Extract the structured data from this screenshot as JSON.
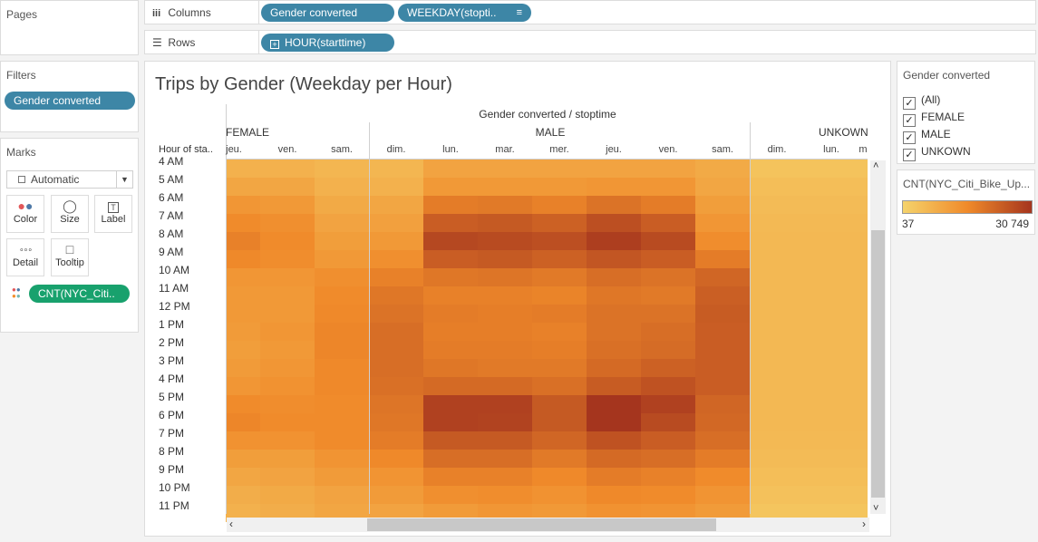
{
  "pages_label": "Pages",
  "columns_shelf": {
    "label": "Columns",
    "pills": [
      "Gender converted",
      "WEEKDAY(stopti.."
    ]
  },
  "rows_shelf": {
    "label": "Rows",
    "pills": [
      "HOUR(starttime)"
    ]
  },
  "filters": {
    "title": "Filters",
    "pills": [
      "Gender converted"
    ]
  },
  "marks": {
    "title": "Marks",
    "type": "Automatic",
    "buttons": [
      {
        "label": "Color",
        "icon": "color-dots-icon"
      },
      {
        "label": "Size",
        "icon": "size-icon"
      },
      {
        "label": "Label",
        "icon": "label-icon"
      },
      {
        "label": "Detail",
        "icon": "detail-icon"
      },
      {
        "label": "Tooltip",
        "icon": "tooltip-icon"
      }
    ],
    "color_pill": "CNT(NYC_Citi.."
  },
  "viz": {
    "title": "Trips by Gender (Weekday per Hour)",
    "col_header": "Gender converted / stoptime",
    "row_header": "Hour of sta..",
    "groups": [
      "FEMALE",
      "MALE",
      "UNKOWN"
    ],
    "days": [
      "jeu.",
      "ven.",
      "sam.",
      "dim.",
      "lun.",
      "mar.",
      "mer.",
      "jeu.",
      "ven.",
      "sam.",
      "dim.",
      "lun.",
      "m"
    ],
    "hours": [
      "4 AM",
      "5 AM",
      "6 AM",
      "7 AM",
      "8 AM",
      "9 AM",
      "10 AM",
      "11 AM",
      "12 PM",
      "1 PM",
      "2 PM",
      "3 PM",
      "4 PM",
      "5 PM",
      "6 PM",
      "7 PM",
      "8 PM",
      "9 PM",
      "10 PM",
      "11 PM"
    ],
    "colors": {
      "low": "#f5d36b",
      "mid": "#f08a2a",
      "high": "#a5351e"
    }
  },
  "chart_data": {
    "type": "heatmap",
    "title": "Trips by Gender (Weekday per Hour)",
    "xlabel": "Gender converted / stoptime",
    "ylabel": "Hour of sta..",
    "x_groups": [
      "FEMALE",
      "MALE",
      "UNKOWN"
    ],
    "x_categories": [
      "jeu.",
      "ven.",
      "sam.",
      "dim.",
      "lun.",
      "mar.",
      "mer.",
      "jeu.",
      "ven.",
      "sam.",
      "dim.",
      "lun.",
      "m"
    ],
    "y_categories": [
      "4 AM",
      "5 AM",
      "6 AM",
      "7 AM",
      "8 AM",
      "9 AM",
      "10 AM",
      "11 AM",
      "12 PM",
      "1 PM",
      "2 PM",
      "3 PM",
      "4 PM",
      "5 PM",
      "6 PM",
      "7 PM",
      "8 PM",
      "9 PM",
      "10 PM",
      "11 PM"
    ],
    "values": [
      [
        2000,
        2000,
        1500,
        1500,
        4000,
        4000,
        4000,
        4000,
        4000,
        3000,
        500,
        500,
        500
      ],
      [
        3500,
        3500,
        2000,
        2000,
        6000,
        6000,
        6000,
        6500,
        6500,
        3500,
        800,
        800,
        800
      ],
      [
        6500,
        6000,
        3000,
        3500,
        12000,
        12500,
        11000,
        14000,
        12000,
        5000,
        1000,
        1000,
        1000
      ],
      [
        9000,
        8000,
        4000,
        4500,
        19000,
        20000,
        18000,
        23000,
        19000,
        6500,
        1200,
        1200,
        1200
      ],
      [
        11000,
        9000,
        5000,
        6000,
        25000,
        24000,
        23000,
        28000,
        24000,
        8500,
        1300,
        1300,
        1300
      ],
      [
        9500,
        8500,
        6000,
        8000,
        19000,
        20000,
        18000,
        21000,
        19000,
        12000,
        1300,
        1300,
        1300
      ],
      [
        6500,
        6500,
        8000,
        11000,
        13000,
        13500,
        12500,
        15000,
        14000,
        17000,
        1300,
        1300,
        1300
      ],
      [
        6000,
        6000,
        9000,
        13000,
        11000,
        11000,
        10500,
        13000,
        12500,
        18500,
        1300,
        1300,
        1300
      ],
      [
        6000,
        6000,
        9500,
        14000,
        12000,
        11500,
        12000,
        14000,
        14000,
        19500,
        1300,
        1300,
        1300
      ],
      [
        5500,
        6500,
        10000,
        15000,
        11500,
        11500,
        11000,
        14000,
        15000,
        19000,
        1300,
        1300,
        1300
      ],
      [
        5000,
        6000,
        10000,
        15000,
        12000,
        12000,
        11500,
        14500,
        15500,
        19000,
        1300,
        1300,
        1300
      ],
      [
        5500,
        6500,
        9500,
        15000,
        13000,
        12500,
        12500,
        16000,
        18000,
        19000,
        1300,
        1300,
        1300
      ],
      [
        6500,
        7500,
        9500,
        14500,
        16000,
        16000,
        14500,
        19500,
        22000,
        19000,
        1300,
        1300,
        1300
      ],
      [
        9000,
        8500,
        9000,
        13500,
        27000,
        27000,
        20000,
        30749,
        27000,
        17000,
        1300,
        1300,
        1300
      ],
      [
        10000,
        9000,
        9000,
        13000,
        27000,
        26500,
        20000,
        30749,
        24000,
        16500,
        1300,
        1300,
        1300
      ],
      [
        7500,
        7500,
        9000,
        12000,
        20000,
        20000,
        17000,
        22000,
        19000,
        15000,
        1200,
        1200,
        1200
      ],
      [
        5000,
        5000,
        7000,
        9500,
        15000,
        15000,
        12500,
        16000,
        15000,
        12000,
        1000,
        1000,
        1000
      ],
      [
        3500,
        4000,
        5500,
        7000,
        11000,
        11000,
        9500,
        12000,
        11000,
        9000,
        800,
        800,
        800
      ],
      [
        2500,
        3000,
        4000,
        5500,
        8000,
        8500,
        7500,
        9500,
        9000,
        7000,
        600,
        600,
        600
      ],
      [
        2000,
        2500,
        3500,
        4000,
        5500,
        6500,
        6000,
        7500,
        7000,
        5500,
        400,
        400,
        400
      ]
    ],
    "color_range": [
      37,
      30749
    ]
  },
  "legend": {
    "filter_title": "Gender converted",
    "options": [
      {
        "label": "(All)",
        "checked": true
      },
      {
        "label": "FEMALE",
        "checked": true
      },
      {
        "label": "MALE",
        "checked": true
      },
      {
        "label": "UNKOWN",
        "checked": true
      }
    ],
    "color_title": "CNT(NYC_Citi_Bike_Up...",
    "min_label": "37",
    "max_label": "30 749"
  }
}
